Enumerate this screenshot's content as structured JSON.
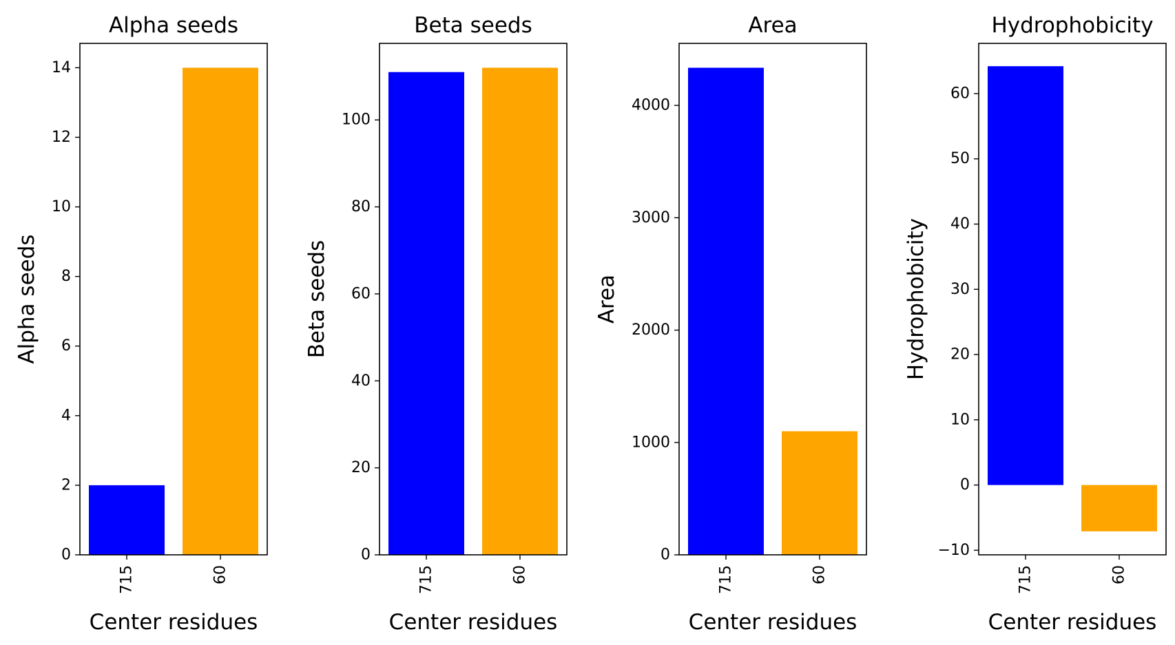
{
  "chart_data": [
    {
      "type": "bar",
      "title": "Alpha seeds",
      "xlabel": "Center residues",
      "ylabel": "Alpha seeds",
      "categories": [
        "715",
        "60"
      ],
      "values": [
        2,
        14
      ],
      "colors": [
        "#0000ff",
        "#ffa500"
      ],
      "ylim": [
        0,
        14.7
      ],
      "yticks": [
        0,
        2,
        4,
        6,
        8,
        10,
        12,
        14
      ],
      "ytick_labels": [
        "0",
        "2",
        "4",
        "6",
        "8",
        "10",
        "12",
        "14"
      ],
      "grid": false
    },
    {
      "type": "bar",
      "title": "Beta seeds",
      "xlabel": "Center residues",
      "ylabel": "Beta seeds",
      "categories": [
        "715",
        "60"
      ],
      "values": [
        111,
        112
      ],
      "colors": [
        "#0000ff",
        "#ffa500"
      ],
      "ylim": [
        0,
        117.6
      ],
      "yticks": [
        0,
        20,
        40,
        60,
        80,
        100
      ],
      "ytick_labels": [
        "0",
        "20",
        "40",
        "60",
        "80",
        "100"
      ],
      "grid": false
    },
    {
      "type": "bar",
      "title": "Area",
      "xlabel": "Center residues",
      "ylabel": "Area",
      "categories": [
        "715",
        "60"
      ],
      "values": [
        4335,
        1100
      ],
      "colors": [
        "#0000ff",
        "#ffa500"
      ],
      "ylim": [
        0,
        4552
      ],
      "yticks": [
        0,
        1000,
        2000,
        3000,
        4000
      ],
      "ytick_labels": [
        "0",
        "1000",
        "2000",
        "3000",
        "4000"
      ],
      "grid": false
    },
    {
      "type": "bar",
      "title": "Hydrophobicity",
      "xlabel": "Center residues",
      "ylabel": "Hydrophobicity",
      "categories": [
        "715",
        "60"
      ],
      "values": [
        64.2,
        -7.1
      ],
      "colors": [
        "#0000ff",
        "#ffa500"
      ],
      "ylim": [
        -10.7,
        67.7
      ],
      "yticks": [
        -10,
        0,
        10,
        20,
        30,
        40,
        50,
        60
      ],
      "ytick_labels": [
        "−10",
        "0",
        "10",
        "20",
        "30",
        "40",
        "50",
        "60"
      ],
      "grid": false
    }
  ]
}
